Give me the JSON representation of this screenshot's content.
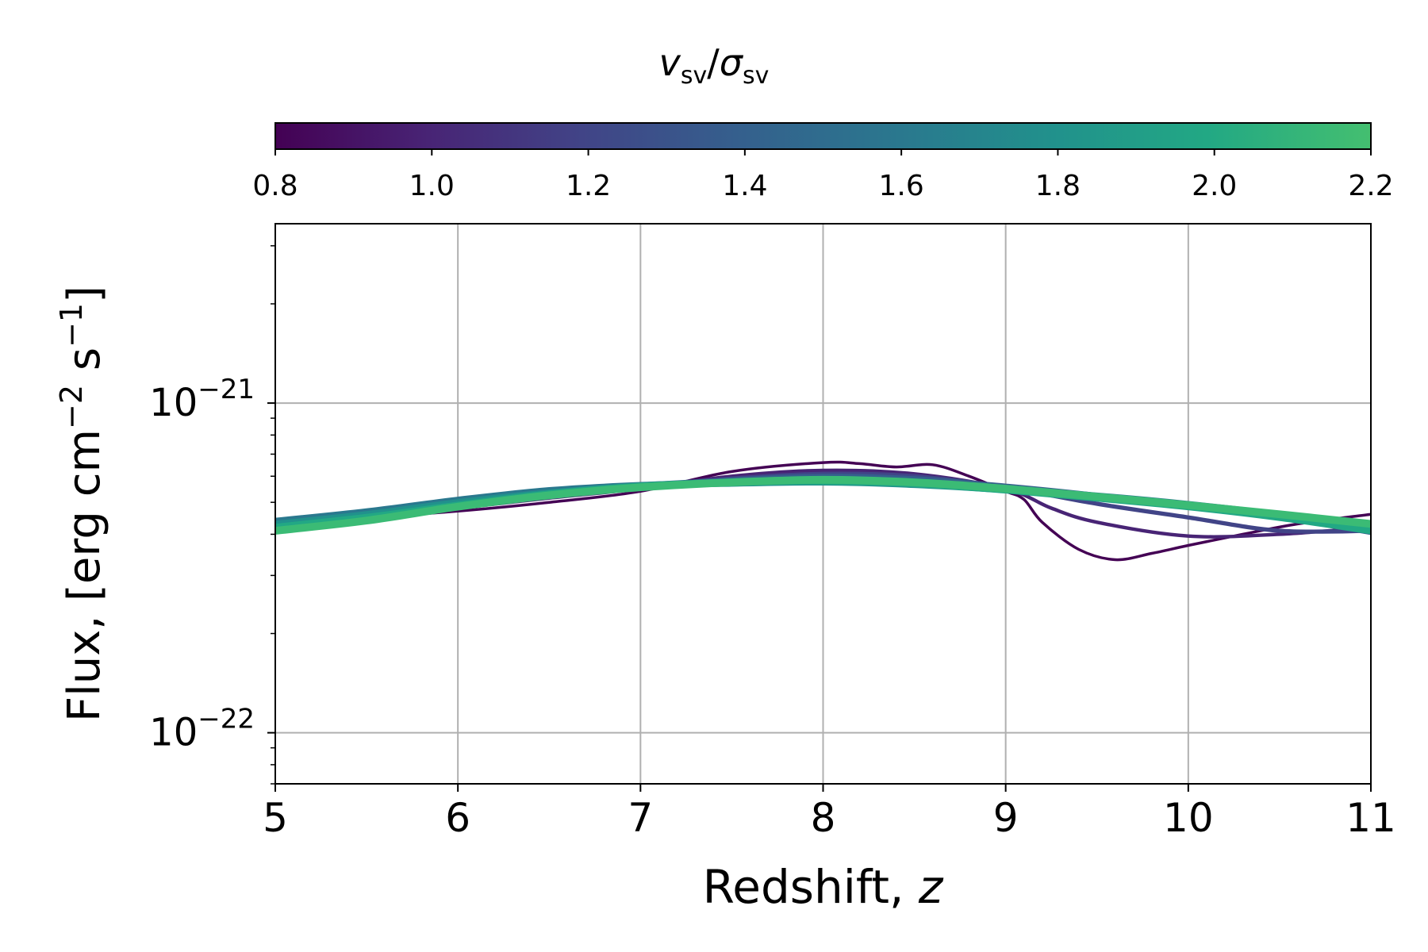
{
  "chart_data": {
    "type": "line",
    "title": "",
    "xlabel": "Redshift, z",
    "ylabel": "Flux, [erg cm−2 s−1]",
    "xlim": [
      5,
      11
    ],
    "ylim": [
      7e-23,
      3.5e-21
    ],
    "yscale": "log",
    "grid": true,
    "x_ticks": [
      5,
      6,
      7,
      8,
      9,
      10,
      11
    ],
    "y_ticks": [
      {
        "value": 1e-22,
        "base": "10",
        "exponent": "−22"
      },
      {
        "value": 1e-21,
        "base": "10",
        "exponent": "−21"
      }
    ],
    "colorbar": {
      "label_base_v": "v",
      "label_sub_v": "sv",
      "label_slash": "/",
      "label_base_sigma": "σ",
      "label_sub_sigma": "sv",
      "range": [
        0.8,
        2.2
      ],
      "ticks": [
        "0.8",
        "1.0",
        "1.2",
        "1.4",
        "1.6",
        "1.8",
        "2.0",
        "2.2"
      ],
      "colormap": "viridis",
      "placement": "top"
    },
    "series": [
      {
        "name": "0.8",
        "param": 0.8,
        "color": "#440154",
        "x": [
          5,
          5.5,
          6,
          6.5,
          7,
          7.5,
          8,
          8.2,
          8.4,
          8.6,
          8.8,
          9,
          9.1,
          9.2,
          9.4,
          9.6,
          9.8,
          10,
          10.3,
          10.6,
          11
        ],
        "y": [
          4.4e-22,
          4.5e-22,
          4.7e-22,
          5e-22,
          5.4e-22,
          6.2e-22,
          6.6e-22,
          6.55e-22,
          6.4e-22,
          6.5e-22,
          6e-22,
          5.4e-22,
          5.1e-22,
          4.35e-22,
          3.6e-22,
          3.35e-22,
          3.5e-22,
          3.7e-22,
          4e-22,
          4.3e-22,
          4.6e-22
        ]
      },
      {
        "name": "1.1",
        "param": 1.1,
        "color": "#482475",
        "x": [
          5,
          5.5,
          6,
          6.5,
          7,
          7.5,
          8,
          8.5,
          9,
          9.25,
          9.5,
          10,
          10.5,
          11
        ],
        "y": [
          4.35e-22,
          4.5e-22,
          4.8e-22,
          5.15e-22,
          5.5e-22,
          6e-22,
          6.25e-22,
          6.1e-22,
          5.5e-22,
          4.8e-22,
          4.35e-22,
          3.95e-22,
          4e-22,
          4.2e-22
        ]
      },
      {
        "name": "1.3",
        "param": 1.3,
        "color": "#414487",
        "x": [
          5,
          5.5,
          6,
          6.5,
          7,
          7.5,
          8,
          8.5,
          9,
          9.5,
          10,
          10.5,
          11
        ],
        "y": [
          4.3e-22,
          4.55e-22,
          4.9e-22,
          5.25e-22,
          5.55e-22,
          5.9e-22,
          6.1e-22,
          6e-22,
          5.55e-22,
          4.95e-22,
          4.5e-22,
          4.1e-22,
          4.1e-22
        ]
      },
      {
        "name": "1.5",
        "param": 1.5,
        "color": "#355f8d",
        "x": [
          5,
          5.5,
          6,
          6.5,
          7,
          7.5,
          8,
          8.5,
          9,
          9.5,
          10,
          10.5,
          11
        ],
        "y": [
          4.35e-22,
          4.65e-22,
          5.05e-22,
          5.4e-22,
          5.65e-22,
          5.85e-22,
          6e-22,
          5.9e-22,
          5.6e-22,
          5.25e-22,
          4.85e-22,
          4.5e-22,
          4.05e-22
        ]
      },
      {
        "name": "1.7",
        "param": 1.7,
        "color": "#2a788e",
        "x": [
          5,
          5.5,
          6,
          6.5,
          7,
          7.5,
          8,
          8.5,
          9,
          9.5,
          10,
          10.5,
          11
        ],
        "y": [
          4.4e-22,
          4.7e-22,
          5.1e-22,
          5.45e-22,
          5.65e-22,
          5.75e-22,
          5.8e-22,
          5.7e-22,
          5.5e-22,
          5.25e-22,
          4.95e-22,
          4.6e-22,
          4.2e-22
        ]
      },
      {
        "name": "1.9",
        "param": 1.9,
        "color": "#21918c",
        "x": [
          5,
          5.5,
          6,
          6.5,
          7,
          7.5,
          8,
          8.5,
          9,
          9.5,
          10,
          10.5,
          11
        ],
        "y": [
          4.3e-22,
          4.6e-22,
          5e-22,
          5.35e-22,
          5.6e-22,
          5.7e-22,
          5.75e-22,
          5.65e-22,
          5.45e-22,
          5.2e-22,
          4.9e-22,
          4.55e-22,
          4.15e-22
        ]
      },
      {
        "name": "2.0",
        "param": 2.0,
        "color": "#22a884",
        "x": [
          5,
          5.5,
          6,
          6.5,
          7,
          7.5,
          8,
          8.5,
          9,
          9.5,
          10,
          10.5,
          11
        ],
        "y": [
          4.2e-22,
          4.5e-22,
          4.9e-22,
          5.3e-22,
          5.6e-22,
          5.75e-22,
          5.8e-22,
          5.7e-22,
          5.45e-22,
          5.15e-22,
          4.85e-22,
          4.5e-22,
          4.1e-22
        ]
      },
      {
        "name": "2.2",
        "param": 2.2,
        "color": "#3bbb75",
        "x": [
          5,
          5.5,
          6,
          6.5,
          7,
          7.5,
          8,
          8.5,
          9,
          9.5,
          10,
          10.5,
          11
        ],
        "y": [
          4.1e-22,
          4.4e-22,
          4.85e-22,
          5.25e-22,
          5.55e-22,
          5.75e-22,
          5.85e-22,
          5.75e-22,
          5.5e-22,
          5.2e-22,
          4.9e-22,
          4.6e-22,
          4.3e-22
        ]
      }
    ]
  }
}
